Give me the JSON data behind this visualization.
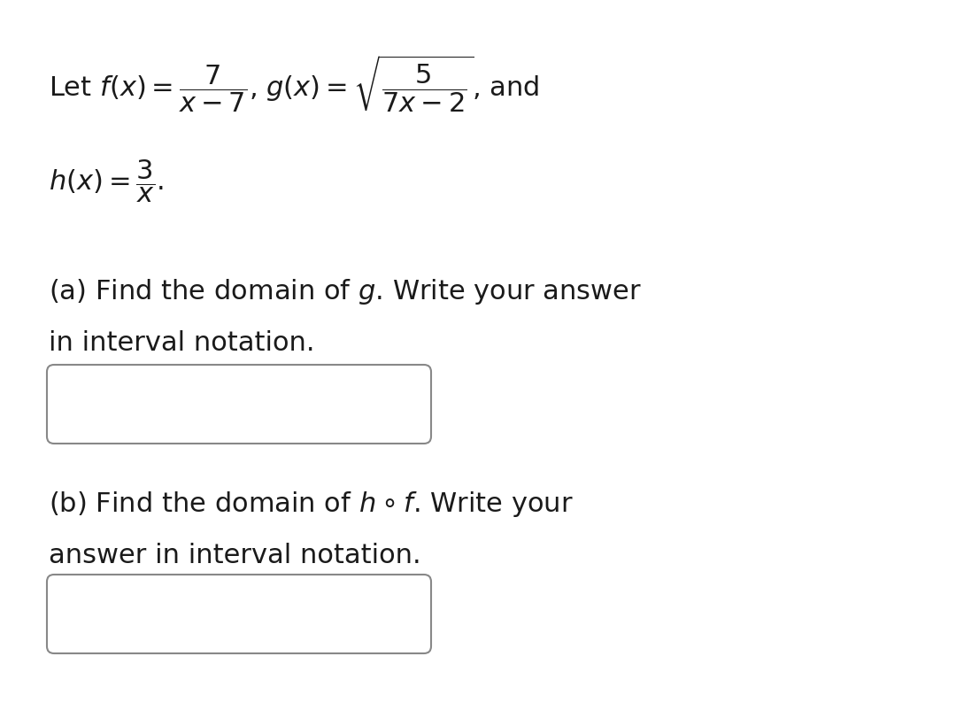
{
  "background_color": "#ffffff",
  "text_color": "#1a1a1a",
  "box_edge_color": "#888888",
  "box_fill": "#ffffff",
  "main_fontsize": 22,
  "formula_fontsize": 22
}
